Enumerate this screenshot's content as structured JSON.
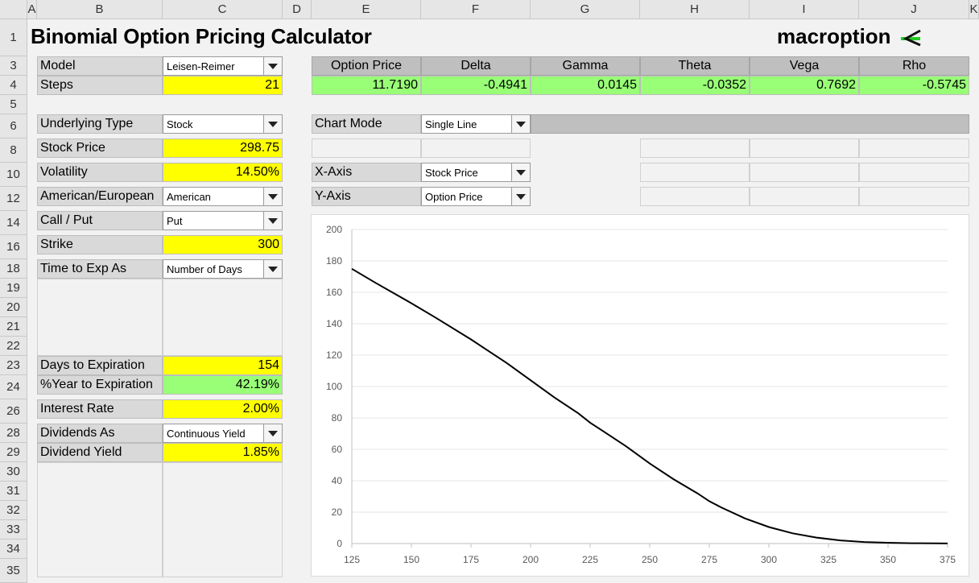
{
  "columns": [
    "A",
    "B",
    "C",
    "D",
    "E",
    "F",
    "G",
    "H",
    "I",
    "J",
    "K"
  ],
  "rows": [
    "1",
    "3",
    "4",
    "5",
    "6",
    "8",
    "10",
    "12",
    "14",
    "16",
    "18",
    "19",
    "20",
    "21",
    "22",
    "23",
    "24",
    "26",
    "28",
    "29",
    "30",
    "31",
    "32",
    "33",
    "34",
    "35"
  ],
  "title": "Binomial Option Pricing Calculator",
  "logo": {
    "text": "macroption",
    "accent": "#22cc22"
  },
  "inputs": {
    "model": {
      "label": "Model",
      "value": "Leisen-Reimer"
    },
    "steps": {
      "label": "Steps",
      "value": "21"
    },
    "underlying_type": {
      "label": "Underlying Type",
      "value": "Stock"
    },
    "stock_price": {
      "label": "Stock Price",
      "value": "298.75"
    },
    "volatility": {
      "label": "Volatility",
      "value": "14.50%"
    },
    "american_european": {
      "label": "American/European",
      "value": "American"
    },
    "call_put": {
      "label": "Call / Put",
      "value": "Put"
    },
    "strike": {
      "label": "Strike",
      "value": "300"
    },
    "time_to_exp_as": {
      "label": "Time to Exp As",
      "value": "Number of Days"
    },
    "days_to_expiration": {
      "label": "Days to Expiration",
      "value": "154"
    },
    "year_to_expiration": {
      "label": "%Year to Expiration",
      "value": "42.19%"
    },
    "interest_rate": {
      "label": "Interest Rate",
      "value": "2.00%"
    },
    "dividends_as": {
      "label": "Dividends As",
      "value": "Continuous Yield"
    },
    "dividend_yield": {
      "label": "Dividend Yield",
      "value": "1.85%"
    }
  },
  "results": {
    "headers": [
      "Option Price",
      "Delta",
      "Gamma",
      "Theta",
      "Vega",
      "Rho"
    ],
    "values": [
      "11.7190",
      "-0.4941",
      "0.0145",
      "-0.0352",
      "0.7692",
      "-0.5745"
    ]
  },
  "chart_settings": {
    "chart_mode": {
      "label": "Chart Mode",
      "value": "Single Line"
    },
    "x_axis": {
      "label": "X-Axis",
      "value": "Stock Price"
    },
    "y_axis": {
      "label": "Y-Axis",
      "value": "Option Price"
    }
  },
  "colors": {
    "input": "#ffff00",
    "output": "#99ff77",
    "label": "#d9d9d9",
    "header": "#bfbfbf"
  },
  "chart_data": {
    "type": "line",
    "xlim": [
      125,
      375
    ],
    "ylim": [
      0,
      200
    ],
    "x_ticks": [
      "125",
      "150",
      "175",
      "200",
      "225",
      "250",
      "275",
      "300",
      "325",
      "350",
      "375"
    ],
    "y_ticks": [
      "0",
      "20",
      "40",
      "60",
      "80",
      "100",
      "120",
      "140",
      "160",
      "180",
      "200"
    ],
    "grid": "horizontal",
    "series": [
      {
        "x": [
          125,
          135,
          150,
          160,
          175,
          180,
          190,
          200,
          210,
          220,
          225,
          230,
          240,
          250,
          260,
          270,
          275,
          280,
          290,
          300,
          310,
          320,
          330,
          340,
          350,
          360,
          370,
          375
        ],
        "y": [
          175,
          166,
          153,
          144,
          130,
          125,
          115,
          104,
          93,
          83,
          77,
          72,
          62,
          51,
          41,
          32,
          27,
          23,
          16,
          10.5,
          6.5,
          3.8,
          2,
          1,
          0.5,
          0.2,
          0.1,
          0.05
        ]
      }
    ]
  }
}
